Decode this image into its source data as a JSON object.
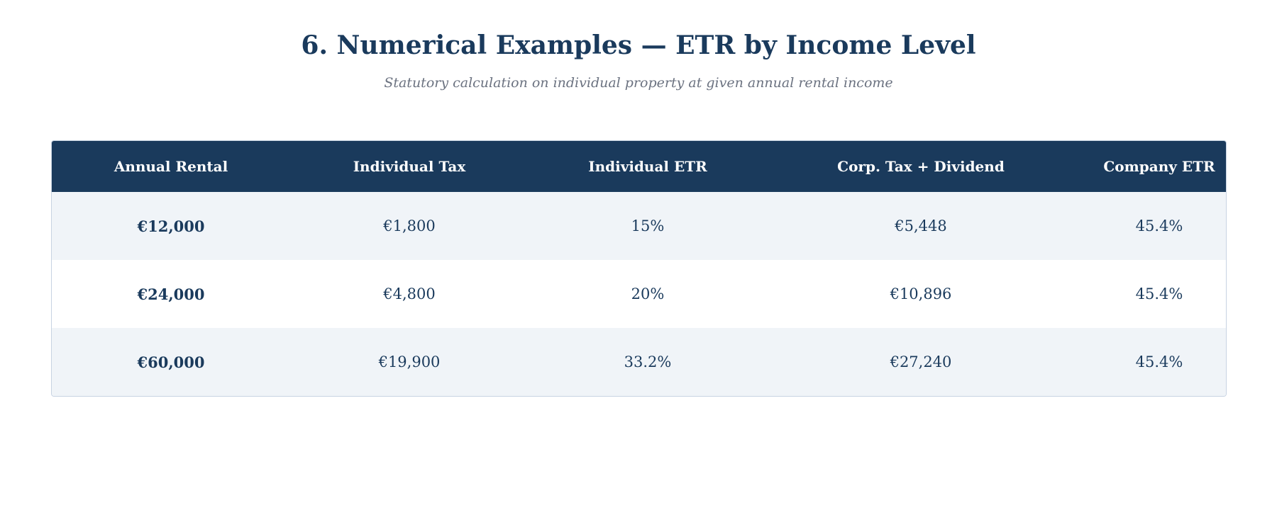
{
  "header": {
    "title": "6. Numerical Examples — ETR by Income Level",
    "subtitle": "Statutory calculation on individual property at given annual rental income"
  },
  "table": {
    "columns": [
      "Annual Rental",
      "Individual Tax",
      "Individual ETR",
      "Corp. Tax + Dividend",
      "Company ETR"
    ],
    "rows": [
      [
        "€12,000",
        "€1,800",
        "15%",
        "€5,448",
        "45.4%"
      ],
      [
        "€24,000",
        "€4,800",
        "20%",
        "€10,896",
        "45.4%"
      ],
      [
        "€60,000",
        "€19,900",
        "33.2%",
        "€27,240",
        "45.4%"
      ]
    ]
  },
  "colors": {
    "header_bg": "#1a3a5c",
    "row_alt_bg": "#f0f4f8",
    "text": "#1a3a5c",
    "subtitle": "#6b7280"
  }
}
